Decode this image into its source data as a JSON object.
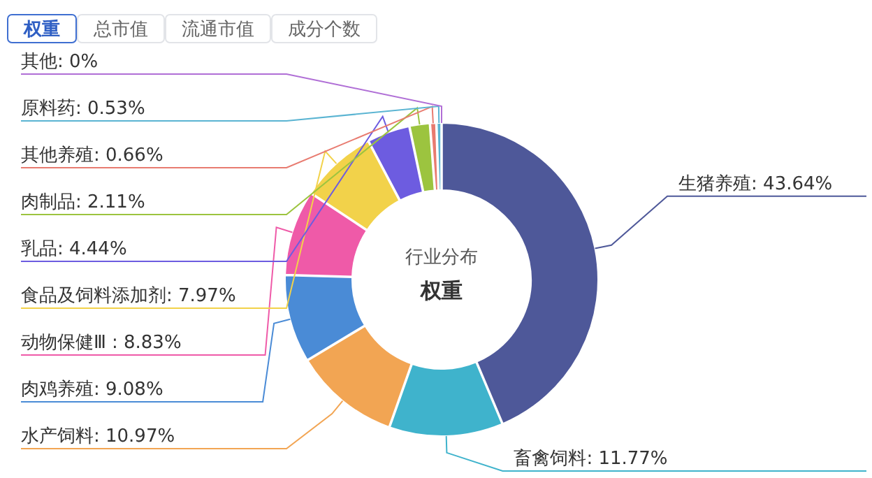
{
  "chart_data": {
    "type": "donut",
    "title": "行业分布",
    "subtitle": "权重",
    "annotations": [
      "权重",
      "总市值",
      "流通市值",
      "成分个数"
    ],
    "categories": [
      "生猪养殖",
      "畜禽饲料",
      "水产饲料",
      "肉鸡养殖",
      "动物保健Ⅲ",
      "食品及饲料添加剂",
      "乳品",
      "肉制品",
      "其他养殖",
      "原料药",
      "其他"
    ],
    "values": [
      43.64,
      11.77,
      10.97,
      9.08,
      8.83,
      7.97,
      4.44,
      2.11,
      0.66,
      0.53,
      0
    ],
    "colors": [
      "#4e5899",
      "#3fb3cc",
      "#f2a553",
      "#4a8bd6",
      "#ef5aa8",
      "#f2d24a",
      "#6d5ce0",
      "#9cc43f",
      "#e87b70",
      "#5ab4d2",
      "#b06fd6"
    ],
    "value_labels": [
      ": 43.64%",
      ": 11.77%",
      ": 10.97%",
      ": 9.08%",
      ": 8.83%",
      ": 7.97%",
      ": 4.44%",
      ": 2.11%",
      ": 0.66%",
      ": 0.53%",
      ": 0%"
    ]
  }
}
